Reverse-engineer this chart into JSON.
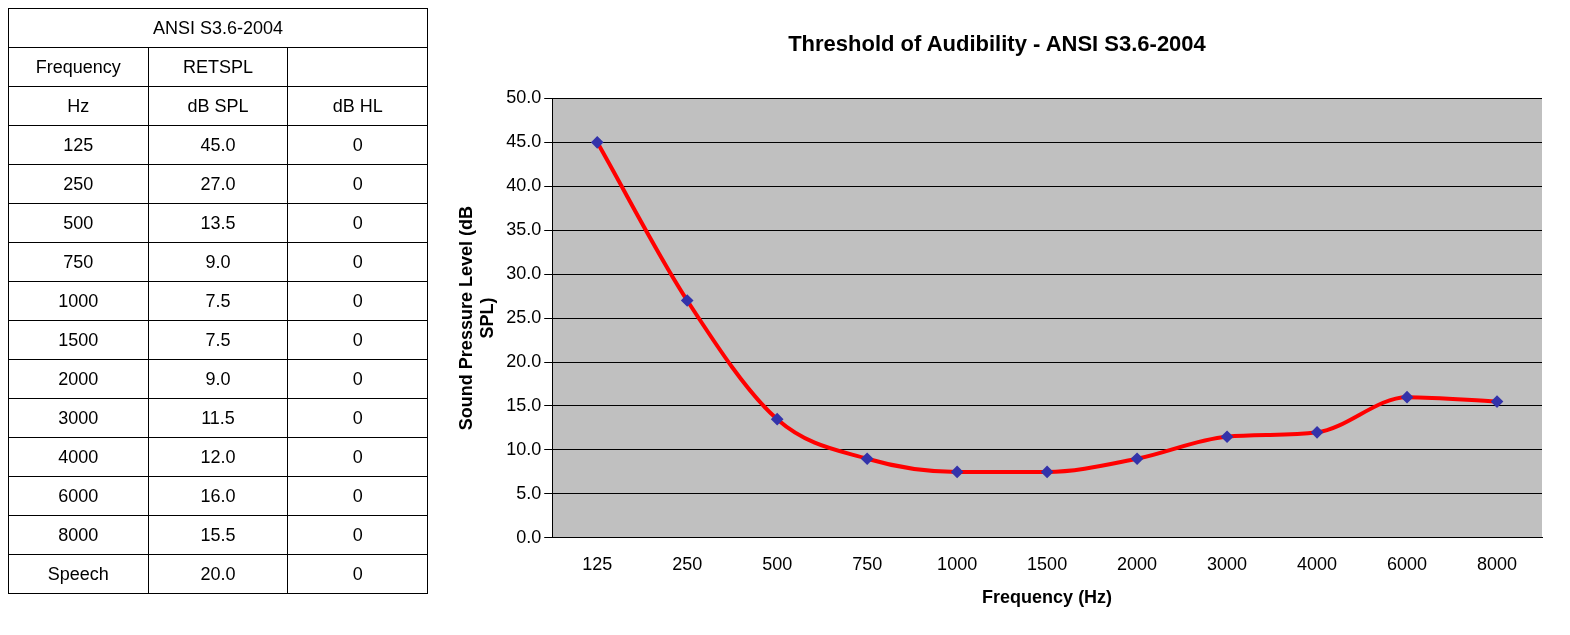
{
  "chart_data": [
    {
      "type": "other",
      "title": "ANSI S3.6-2004",
      "annotations": [
        "Frequency",
        "RETSPL",
        "Hz",
        "dB SPL",
        "dB HL",
        "125",
        "45.0",
        "0",
        "250",
        "27.0",
        "0",
        "500",
        "13.5",
        "0",
        "750",
        "9.0",
        "0",
        "1000",
        "7.5",
        "0",
        "1500",
        "7.5",
        "0",
        "2000",
        "9.0",
        "0",
        "3000",
        "11.5",
        "0",
        "4000",
        "12.0",
        "0",
        "6000",
        "16.0",
        "0",
        "8000",
        "15.5",
        "0",
        "Speech",
        "20.0",
        "0"
      ]
    },
    {
      "type": "line",
      "title": "Threshold of Audibility - ANSI S3.6-2004",
      "xlabel": "Frequency (Hz)",
      "ylabel": "Sound Pressure Level (dB SPL)",
      "categories": [
        "125",
        "250",
        "500",
        "750",
        "1000",
        "1500",
        "2000",
        "3000",
        "4000",
        "6000",
        "8000"
      ],
      "series": [
        {
          "color": "#ff0000",
          "values": [
            45.0,
            27.0,
            13.5,
            9.0,
            7.5,
            7.5,
            9.0,
            11.5,
            12.0,
            16.0,
            15.5
          ]
        }
      ],
      "ylim": [
        0,
        50
      ],
      "yticks": [
        {
          "value": 0,
          "label": "0.0"
        },
        {
          "value": 5,
          "label": "5.0"
        },
        {
          "value": 10,
          "label": "10.0"
        },
        {
          "value": 15,
          "label": "15.0"
        },
        {
          "value": 20,
          "label": "20.0"
        },
        {
          "value": 25,
          "label": "25.0"
        },
        {
          "value": 30,
          "label": "30.0"
        },
        {
          "value": 35,
          "label": "35.0"
        },
        {
          "value": 40,
          "label": "40.0"
        },
        {
          "value": 45,
          "label": "45.0"
        },
        {
          "value": 50,
          "label": "50.0"
        }
      ],
      "grid": "y",
      "legend": false,
      "marker": "diamond",
      "line_style": "solid"
    }
  ]
}
